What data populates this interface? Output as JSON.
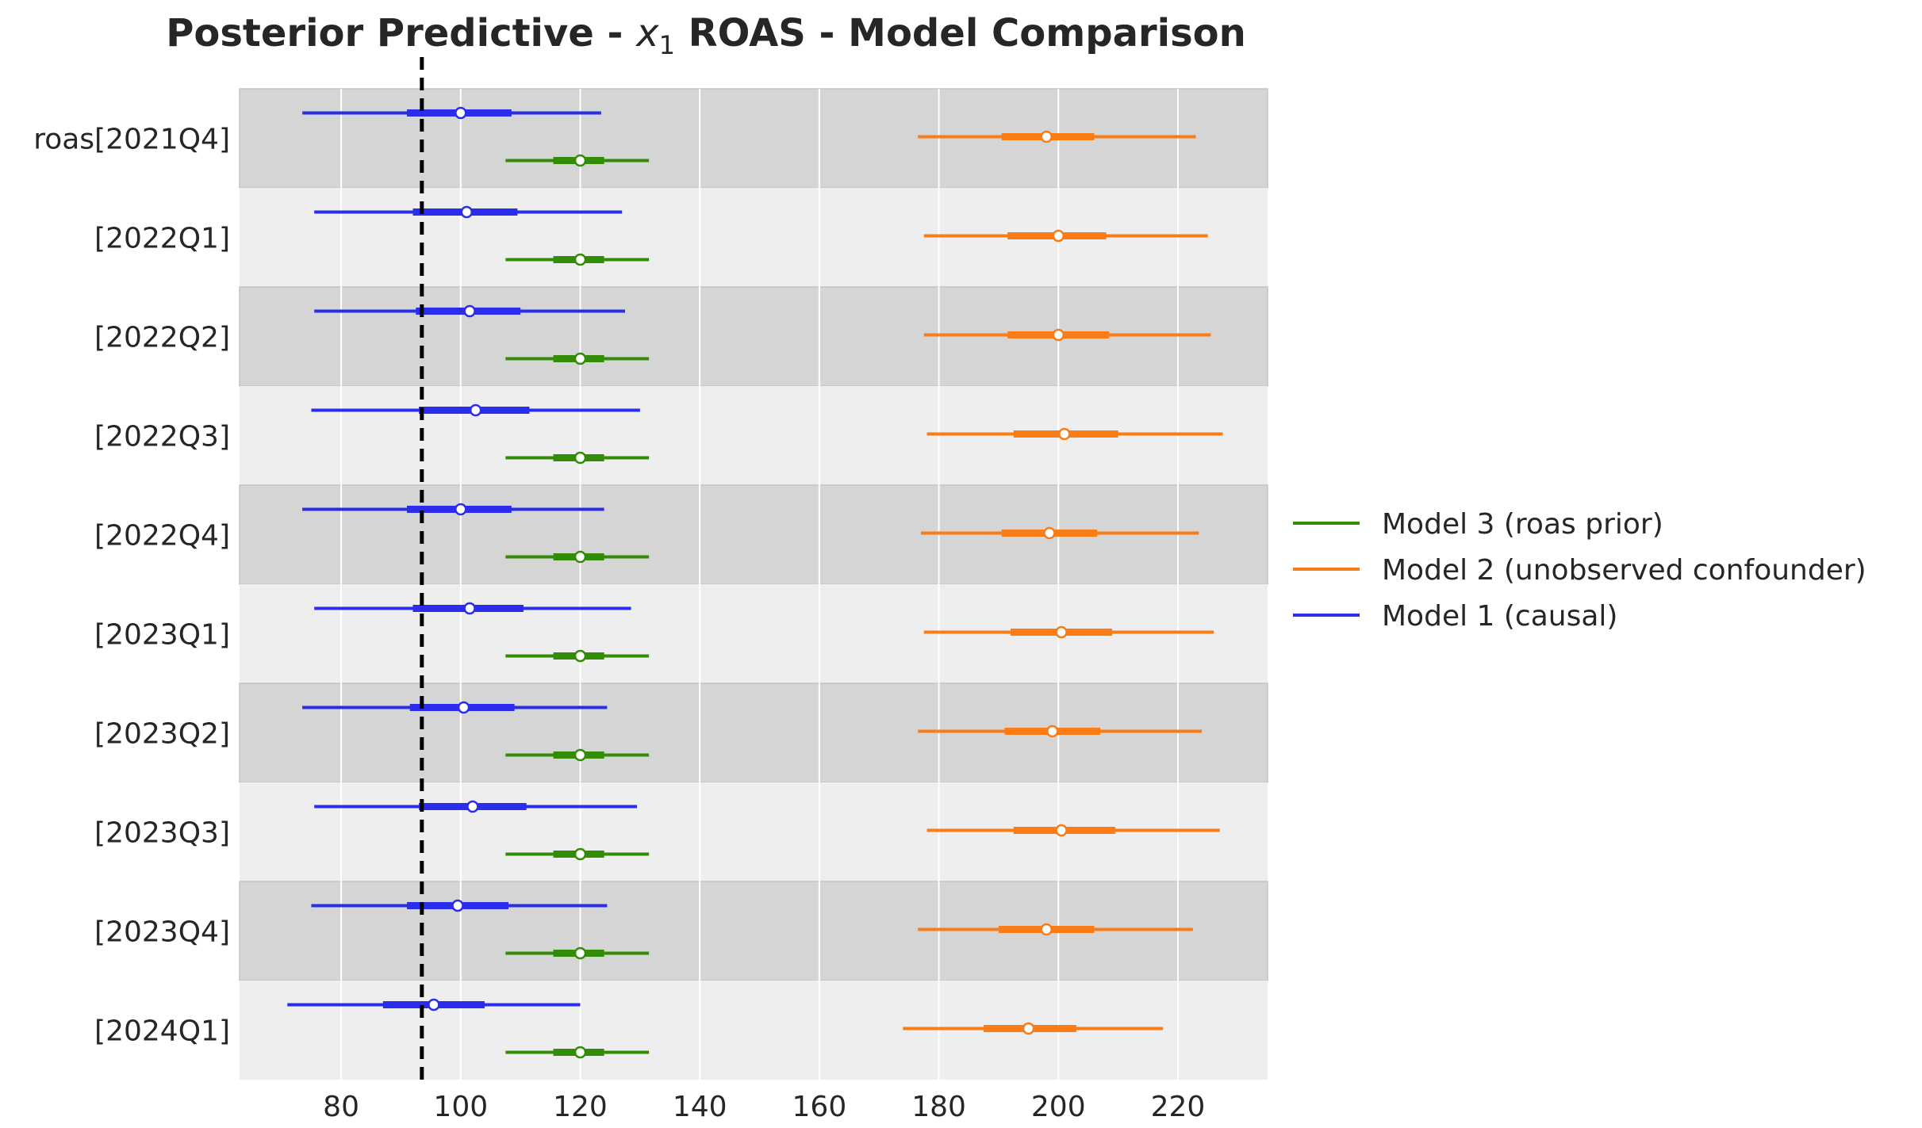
{
  "chart_data": {
    "type": "forest",
    "title_prefix": "Posterior Predictive - ",
    "title_var": "x",
    "title_sub": "1",
    "title_suffix": " ROAS - Model Comparison",
    "xlim": [
      63,
      235
    ],
    "xticks": [
      80,
      100,
      120,
      140,
      160,
      180,
      200,
      220
    ],
    "reference_line": 93.5,
    "categories": [
      "roas[2021Q4]",
      "[2022Q1]",
      "[2022Q2]",
      "[2022Q3]",
      "[2022Q4]",
      "[2023Q1]",
      "[2023Q2]",
      "[2023Q3]",
      "[2023Q4]",
      "[2024Q1]"
    ],
    "series": [
      {
        "name": "Model 1 (causal)",
        "color": "#2a2eec",
        "points": [
          {
            "mean": 100,
            "hdi_low": 73.5,
            "hdi_high": 123.5,
            "iqr_low": 91,
            "iqr_high": 108.5
          },
          {
            "mean": 101,
            "hdi_low": 75.5,
            "hdi_high": 127,
            "iqr_low": 92,
            "iqr_high": 109.5
          },
          {
            "mean": 101.5,
            "hdi_low": 75.5,
            "hdi_high": 127.5,
            "iqr_low": 92.5,
            "iqr_high": 110
          },
          {
            "mean": 102.5,
            "hdi_low": 75,
            "hdi_high": 130,
            "iqr_low": 93,
            "iqr_high": 111.5
          },
          {
            "mean": 100,
            "hdi_low": 73.5,
            "hdi_high": 124,
            "iqr_low": 91,
            "iqr_high": 108.5
          },
          {
            "mean": 101.5,
            "hdi_low": 75.5,
            "hdi_high": 128.5,
            "iqr_low": 92,
            "iqr_high": 110.5
          },
          {
            "mean": 100.5,
            "hdi_low": 73.5,
            "hdi_high": 124.5,
            "iqr_low": 91.5,
            "iqr_high": 109
          },
          {
            "mean": 102,
            "hdi_low": 75.5,
            "hdi_high": 129.5,
            "iqr_low": 93,
            "iqr_high": 111
          },
          {
            "mean": 99.5,
            "hdi_low": 75,
            "hdi_high": 124.5,
            "iqr_low": 91,
            "iqr_high": 108
          },
          {
            "mean": 95.5,
            "hdi_low": 71,
            "hdi_high": 120,
            "iqr_low": 87,
            "iqr_high": 104
          }
        ]
      },
      {
        "name": "Model 2 (unobserved confounder)",
        "color": "#fa7c17",
        "points": [
          {
            "mean": 198,
            "hdi_low": 176.5,
            "hdi_high": 223,
            "iqr_low": 190.5,
            "iqr_high": 206
          },
          {
            "mean": 200,
            "hdi_low": 177.5,
            "hdi_high": 225,
            "iqr_low": 191.5,
            "iqr_high": 208
          },
          {
            "mean": 200,
            "hdi_low": 177.5,
            "hdi_high": 225.5,
            "iqr_low": 191.5,
            "iqr_high": 208.5
          },
          {
            "mean": 201,
            "hdi_low": 178,
            "hdi_high": 227.5,
            "iqr_low": 192.5,
            "iqr_high": 210
          },
          {
            "mean": 198.5,
            "hdi_low": 177,
            "hdi_high": 223.5,
            "iqr_low": 190.5,
            "iqr_high": 206.5
          },
          {
            "mean": 200.5,
            "hdi_low": 177.5,
            "hdi_high": 226,
            "iqr_low": 192,
            "iqr_high": 209
          },
          {
            "mean": 199,
            "hdi_low": 176.5,
            "hdi_high": 224,
            "iqr_low": 191,
            "iqr_high": 207
          },
          {
            "mean": 200.5,
            "hdi_low": 178,
            "hdi_high": 227,
            "iqr_low": 192.5,
            "iqr_high": 209.5
          },
          {
            "mean": 198,
            "hdi_low": 176.5,
            "hdi_high": 222.5,
            "iqr_low": 190,
            "iqr_high": 206
          },
          {
            "mean": 195,
            "hdi_low": 174,
            "hdi_high": 217.5,
            "iqr_low": 187.5,
            "iqr_high": 203
          }
        ]
      },
      {
        "name": "Model 3 (roas prior)",
        "color": "#328c06",
        "points": [
          {
            "mean": 120,
            "hdi_low": 107.5,
            "hdi_high": 131.5,
            "iqr_low": 115.5,
            "iqr_high": 124
          },
          {
            "mean": 120,
            "hdi_low": 107.5,
            "hdi_high": 131.5,
            "iqr_low": 115.5,
            "iqr_high": 124
          },
          {
            "mean": 120,
            "hdi_low": 107.5,
            "hdi_high": 131.5,
            "iqr_low": 115.5,
            "iqr_high": 124
          },
          {
            "mean": 120,
            "hdi_low": 107.5,
            "hdi_high": 131.5,
            "iqr_low": 115.5,
            "iqr_high": 124
          },
          {
            "mean": 120,
            "hdi_low": 107.5,
            "hdi_high": 131.5,
            "iqr_low": 115.5,
            "iqr_high": 124
          },
          {
            "mean": 120,
            "hdi_low": 107.5,
            "hdi_high": 131.5,
            "iqr_low": 115.5,
            "iqr_high": 124
          },
          {
            "mean": 120,
            "hdi_low": 107.5,
            "hdi_high": 131.5,
            "iqr_low": 115.5,
            "iqr_high": 124
          },
          {
            "mean": 120,
            "hdi_low": 107.5,
            "hdi_high": 131.5,
            "iqr_low": 115.5,
            "iqr_high": 124
          },
          {
            "mean": 120,
            "hdi_low": 107.5,
            "hdi_high": 131.5,
            "iqr_low": 115.5,
            "iqr_high": 124
          },
          {
            "mean": 120,
            "hdi_low": 107.5,
            "hdi_high": 131.5,
            "iqr_low": 115.5,
            "iqr_high": 124
          }
        ]
      }
    ],
    "legend": {
      "placement": "center-right",
      "order": [
        "Model 3 (roas prior)",
        "Model 2 (unobserved confounder)",
        "Model 1 (causal)"
      ]
    },
    "grid": "vertical",
    "band_colors": [
      "#d5d5d5",
      "#eeeeee"
    ]
  }
}
